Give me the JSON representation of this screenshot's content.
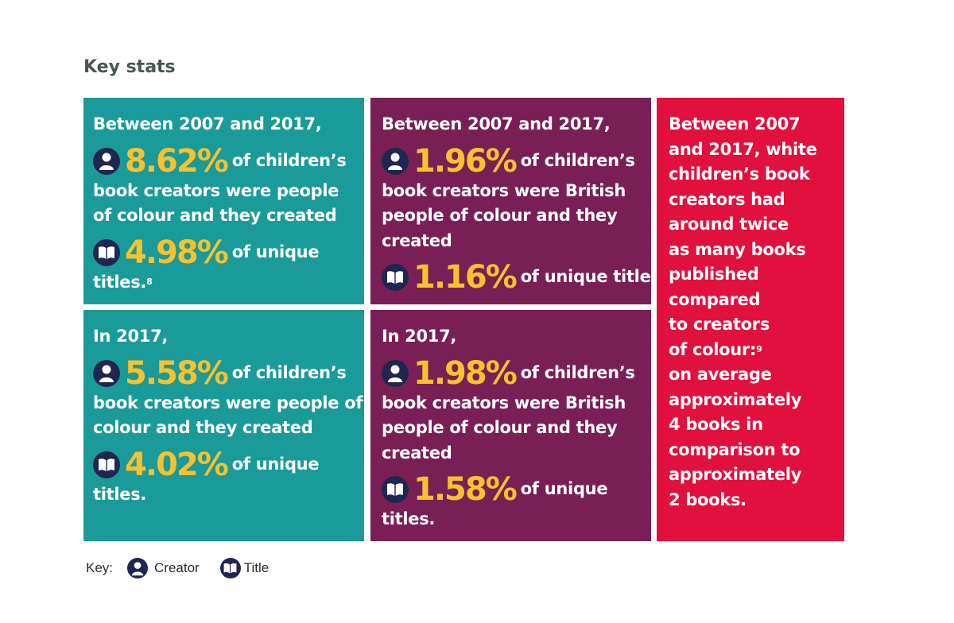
{
  "heading": "Key stats",
  "panels": {
    "creators_2007_2017": {
      "line1": "Between 2007 and 2017,",
      "stat1": "8.62%",
      "after_stat1": "of children’s",
      "line3": "book creators were people",
      "line4": "of colour and they created",
      "stat2": "4.98%",
      "after_stat2": "of unique",
      "line6": "titles.",
      "footnote": "8"
    },
    "british_2007_2017": {
      "line1": "Between 2007 and 2017,",
      "stat1": "1.96%",
      "after_stat1": "of children’s",
      "line3_pre": "book creators were",
      "line3_bold": "British",
      "line4": "people of colour and they",
      "line5": "created",
      "stat2": "1.16%",
      "after_stat2": "of unique titles."
    },
    "creators_2017": {
      "line1": "In 2017,",
      "stat1": "5.58%",
      "after_stat1": "of children’s",
      "line3": "book creators were people of",
      "line4": "colour and they created",
      "stat2": "4.02%",
      "after_stat2": "of unique",
      "line6": "titles."
    },
    "british_2017": {
      "line1": "In 2017,",
      "stat1": "1.98%",
      "after_stat1": "of children’s",
      "line3_pre": "book creators were",
      "line3_bold": "British",
      "line4": "people of colour and they",
      "line5": "created",
      "stat2": "1.58%",
      "after_stat2": "of unique",
      "line6": "titles."
    },
    "comparison": {
      "lines_regular_1": [
        "Between 2007",
        "and 2017, white",
        "children’s book",
        "creators had"
      ],
      "line5_pre": "around",
      "line5_bold": "twice",
      "lines_bold": [
        "as many books",
        "published",
        "compared",
        "to creators"
      ],
      "line10_bold": "of colour:",
      "footnote": "9",
      "lines_regular_2": [
        "on average",
        "approximately",
        "4 books in",
        "comparison to",
        "approximately",
        "2 books."
      ]
    }
  },
  "key": {
    "label": "Key:",
    "creator_label": "Creator",
    "title_label": "Title"
  },
  "icons": {
    "creator": "person-icon",
    "title": "open-book-icon"
  },
  "colors": {
    "teal": "#1a9a99",
    "plum": "#7a1f55",
    "red": "#e1103d",
    "highlight": "#f9c12e",
    "icon_bg": "#1f2650",
    "heading": "#4a5550"
  }
}
